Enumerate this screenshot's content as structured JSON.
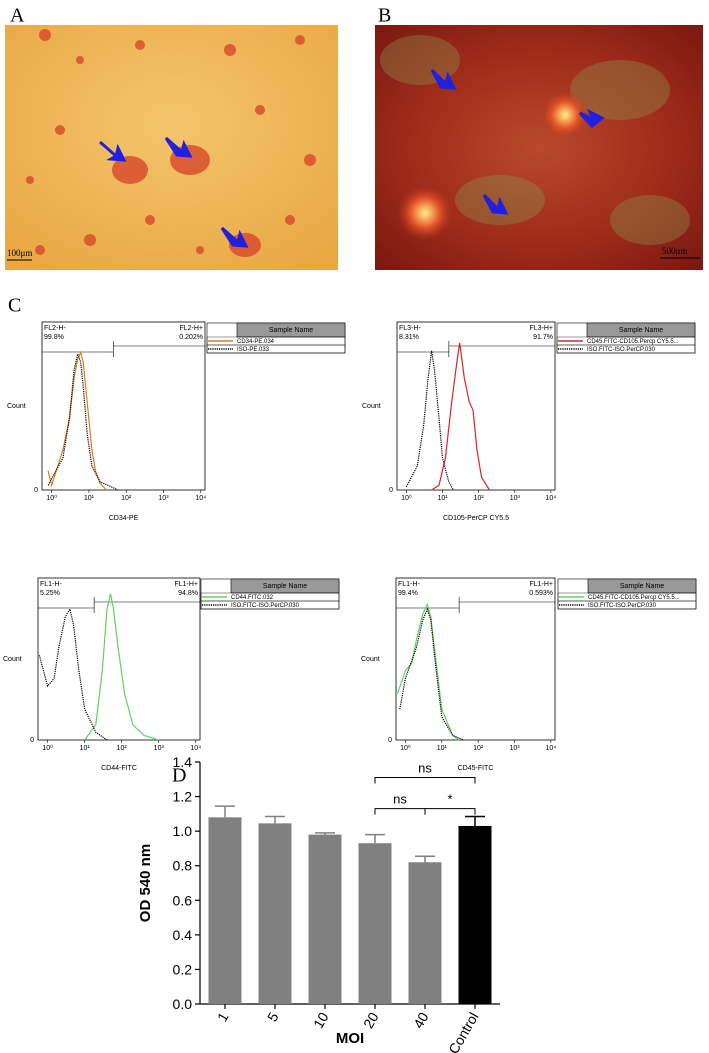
{
  "panel_labels": [
    "A",
    "B",
    "C",
    "D"
  ],
  "images": [
    {
      "scale_bar": "100μm"
    },
    {
      "scale_bar": "500μm"
    }
  ],
  "flow": [
    {
      "gate_left_label": "FL2-H-",
      "gate_left_value": "99.8%",
      "gate_right_label": "FL2-H+",
      "gate_right_value": "0.202%",
      "legend_header": "Sample Name",
      "x_label": "CD34-PE",
      "y_label": "Count",
      "xscale": "log",
      "gate": 45,
      "xlim": [
        0.55,
        13000
      ],
      "ylim": [
        0,
        100
      ],
      "yticks": [
        0
      ],
      "xticks": [
        {
          "value": 1,
          "label": "10⁰"
        },
        {
          "value": 10,
          "label": "10¹"
        },
        {
          "value": 100,
          "label": "10²"
        },
        {
          "value": 1000,
          "label": "10³"
        },
        {
          "value": 10000,
          "label": "10⁴"
        }
      ],
      "series": [
        {
          "name": "CD34-PE.034",
          "color": "#e07b1f",
          "style": "solid",
          "x": [
            0.8,
            1,
            2,
            3,
            4,
            5,
            6,
            7,
            9,
            12,
            15,
            20,
            30
          ],
          "values": [
            12,
            3,
            25,
            45,
            70,
            82,
            86,
            80,
            55,
            25,
            12,
            4,
            0
          ]
        },
        {
          "name": "ISO-PE.033",
          "color": "#000000",
          "style": "dotted",
          "x": [
            0.8,
            2,
            3,
            4,
            5,
            6,
            7,
            9,
            12,
            20,
            40,
            60
          ],
          "values": [
            3,
            20,
            45,
            75,
            85,
            80,
            65,
            35,
            15,
            5,
            2,
            0
          ]
        }
      ]
    },
    {
      "gate_left_label": "FL3-H-",
      "gate_left_value": "8.31%",
      "gate_right_label": "FL3-H+",
      "gate_right_value": "91.7%",
      "legend_header": "Sample Name",
      "x_label": "CD105-PerCP CY5.5",
      "y_label": "Count",
      "xscale": "log",
      "gate": 15,
      "xlim": [
        0.55,
        13000
      ],
      "ylim": [
        0,
        100
      ],
      "yticks": [
        0
      ],
      "xticks": [
        {
          "value": 1,
          "label": "10⁰"
        },
        {
          "value": 10,
          "label": "10¹"
        },
        {
          "value": 100,
          "label": "10²"
        },
        {
          "value": 1000,
          "label": "10³"
        },
        {
          "value": 10000,
          "label": "10⁴"
        }
      ],
      "series": [
        {
          "name": "CD45.FITC-CD105.Percp CY5.5...",
          "color": "#d62728",
          "style": "solid",
          "x": [
            5,
            8,
            12,
            18,
            25,
            30,
            40,
            55,
            70,
            90,
            120,
            200
          ],
          "values": [
            0,
            3,
            20,
            55,
            80,
            92,
            70,
            55,
            50,
            25,
            8,
            0
          ]
        },
        {
          "name": "ISO.FITC-ISO.PerCP.030",
          "color": "#000000",
          "style": "dotted",
          "x": [
            1,
            2,
            3,
            4,
            5,
            6,
            8,
            10,
            15,
            20
          ],
          "values": [
            2,
            15,
            40,
            70,
            87,
            75,
            45,
            20,
            5,
            0
          ]
        }
      ]
    },
    {
      "gate_left_label": "FL1-H-",
      "gate_left_value": "5.25%",
      "gate_right_label": "FL1-H+",
      "gate_right_value": "94.8%",
      "legend_header": "Sample Name",
      "x_label": "CD44-FITC",
      "y_label": "Count",
      "xscale": "log",
      "gate": 18,
      "xlim": [
        0.55,
        13000
      ],
      "ylim": [
        0,
        100
      ],
      "yticks": [
        0
      ],
      "xticks": [
        {
          "value": 1,
          "label": "10⁰"
        },
        {
          "value": 10,
          "label": "10¹"
        },
        {
          "value": 100,
          "label": "10²"
        },
        {
          "value": 1000,
          "label": "10³"
        },
        {
          "value": 10000,
          "label": "10⁴"
        }
      ],
      "series": [
        {
          "name": "CD44.FITC.032",
          "color": "#5fd35f",
          "style": "solid",
          "x": [
            10,
            20,
            30,
            40,
            50,
            60,
            80,
            120,
            200,
            400,
            1000
          ],
          "values": [
            0,
            10,
            45,
            85,
            95,
            85,
            60,
            30,
            10,
            3,
            0
          ]
        },
        {
          "name": "ISO.FITC-ISO.PerCP.030",
          "color": "#000000",
          "style": "dotted",
          "x": [
            0.6,
            1,
            1.5,
            2,
            3,
            4,
            5,
            7,
            10,
            20,
            40
          ],
          "values": [
            55,
            35,
            40,
            60,
            80,
            85,
            75,
            45,
            20,
            5,
            0
          ]
        }
      ]
    },
    {
      "gate_left_label": "FL1-H-",
      "gate_left_value": "99.4%",
      "gate_right_label": "FL1-H+",
      "gate_right_value": "0.593%",
      "legend_header": "Sample Name",
      "x_label": "CD45-FITC",
      "y_label": "Count",
      "xscale": "log",
      "gate": 30,
      "xlim": [
        0.55,
        13000
      ],
      "ylim": [
        0,
        100
      ],
      "yticks": [
        0
      ],
      "xticks": [
        {
          "value": 1,
          "label": "10⁰"
        },
        {
          "value": 10,
          "label": "10¹"
        },
        {
          "value": 100,
          "label": "10²"
        },
        {
          "value": 1000,
          "label": "10³"
        },
        {
          "value": 10000,
          "label": "10⁴"
        }
      ],
      "series": [
        {
          "name": "CD45.FITC-CD105.Percp CY5.5...",
          "color": "#5fd35f",
          "style": "solid",
          "x": [
            0.6,
            1,
            1.5,
            2,
            3,
            4,
            5,
            7,
            10,
            20,
            30
          ],
          "values": [
            30,
            45,
            50,
            65,
            82,
            88,
            80,
            50,
            20,
            3,
            0
          ]
        },
        {
          "name": "ISO.FITC-ISO.PerCP.030",
          "color": "#000000",
          "style": "dotted",
          "x": [
            0.7,
            1,
            2,
            3,
            4,
            5,
            7,
            10,
            20,
            40
          ],
          "values": [
            20,
            40,
            60,
            78,
            85,
            78,
            45,
            15,
            3,
            0
          ]
        }
      ]
    }
  ],
  "chart_data": {
    "type": "bar",
    "y_label": "OD 540 nm",
    "x_label": "MOI",
    "categories": [
      "1",
      "5",
      "10",
      "20",
      "40",
      "Control"
    ],
    "values": [
      1.08,
      1.045,
      0.98,
      0.93,
      0.82,
      1.03
    ],
    "errors": [
      0.065,
      0.04,
      0.01,
      0.05,
      0.035,
      0.055
    ],
    "colors": [
      "#808080",
      "#808080",
      "#808080",
      "#808080",
      "#808080",
      "#000000"
    ],
    "ylim": [
      0,
      1.4
    ],
    "yticks": [
      {
        "value": 0,
        "label": "0.0"
      },
      0.2,
      0.4,
      0.6,
      0.8,
      {
        "value": 1,
        "label": "1.0"
      },
      1.2,
      1.4
    ],
    "annotations": [
      {
        "text": "ns",
        "from": "20",
        "to": "Control",
        "y": 1.31
      },
      {
        "text": "ns",
        "from": "20",
        "to": "40",
        "y": 1.13
      },
      {
        "text": "*",
        "from": "40",
        "to": "Control",
        "y": 1.13
      }
    ]
  }
}
